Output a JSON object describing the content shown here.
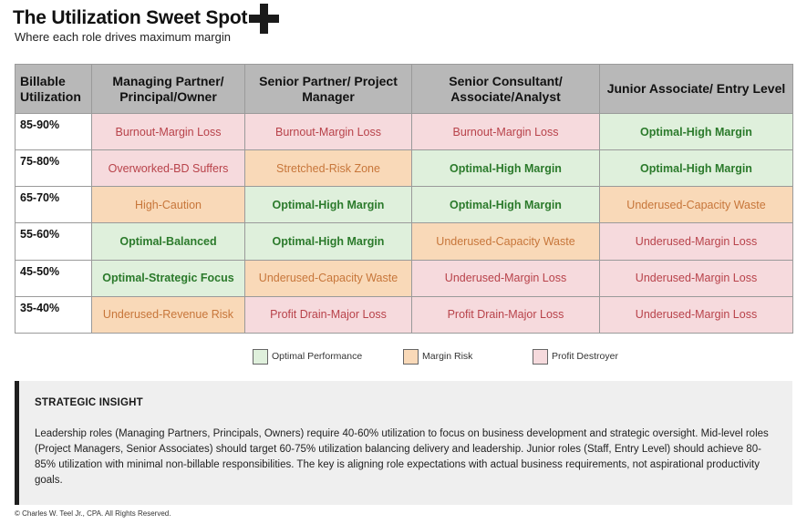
{
  "header": {
    "title": "The Utilization Sweet Spot",
    "subtitle": "Where each role drives maximum margin",
    "logo_icon": "plus-icon"
  },
  "table": {
    "corner_label": "Billable Utilization",
    "columns": [
      "Managing Partner/ Principal/Owner",
      "Senior Partner/ Project Manager",
      "Senior Consultant/ Associate/Analyst",
      "Junior Associate/ Entry Level"
    ],
    "rows": [
      {
        "label": "85-90%",
        "cells": [
          {
            "text": "Burnout-Margin Loss",
            "status": "profit-destroyer"
          },
          {
            "text": "Burnout-Margin Loss",
            "status": "profit-destroyer"
          },
          {
            "text": "Burnout-Margin Loss",
            "status": "profit-destroyer"
          },
          {
            "text": "Optimal-High Margin",
            "status": "optimal"
          }
        ]
      },
      {
        "label": "75-80%",
        "cells": [
          {
            "text": "Overworked-BD Suffers",
            "status": "profit-destroyer"
          },
          {
            "text": "Stretched-Risk Zone",
            "status": "margin-risk"
          },
          {
            "text": "Optimal-High Margin",
            "status": "optimal"
          },
          {
            "text": "Optimal-High Margin",
            "status": "optimal"
          }
        ]
      },
      {
        "label": "65-70%",
        "cells": [
          {
            "text": "High-Caution",
            "status": "margin-risk"
          },
          {
            "text": "Optimal-High Margin",
            "status": "optimal"
          },
          {
            "text": "Optimal-High Margin",
            "status": "optimal"
          },
          {
            "text": "Underused-Capacity Waste",
            "status": "margin-risk"
          }
        ]
      },
      {
        "label": "55-60%",
        "cells": [
          {
            "text": "Optimal-Balanced",
            "status": "optimal"
          },
          {
            "text": "Optimal-High Margin",
            "status": "optimal"
          },
          {
            "text": "Underused-Capacity Waste",
            "status": "margin-risk"
          },
          {
            "text": "Underused-Margin Loss",
            "status": "profit-destroyer"
          }
        ]
      },
      {
        "label": "45-50%",
        "cells": [
          {
            "text": "Optimal-Strategic Focus",
            "status": "optimal"
          },
          {
            "text": "Underused-Capacity Waste",
            "status": "margin-risk"
          },
          {
            "text": "Underused-Margin Loss",
            "status": "profit-destroyer"
          },
          {
            "text": "Underused-Margin Loss",
            "status": "profit-destroyer"
          }
        ]
      },
      {
        "label": "35-40%",
        "cells": [
          {
            "text": "Underused-Revenue Risk",
            "status": "margin-risk"
          },
          {
            "text": "Profit Drain-Major Loss",
            "status": "profit-destroyer"
          },
          {
            "text": "Profit Drain-Major Loss",
            "status": "profit-destroyer"
          },
          {
            "text": "Underused-Margin Loss",
            "status": "profit-destroyer"
          }
        ]
      }
    ]
  },
  "legend": [
    {
      "label": "Optimal Performance",
      "status": "optimal"
    },
    {
      "label": "Margin Risk",
      "status": "margin-risk"
    },
    {
      "label": "Profit Destroyer",
      "status": "profit-destroyer"
    }
  ],
  "colors": {
    "optimal_bg": "#dff0dc",
    "optimal_text": "#2b7a2b",
    "margin_risk_bg": "#f9d9b8",
    "margin_risk_text": "#c7763a",
    "profit_destroyer_bg": "#f6dadd",
    "profit_destroyer_text": "#b8424a",
    "header_bg": "#b8b8b8"
  },
  "insight": {
    "heading": "STRATEGIC INSIGHT",
    "body": "Leadership roles (Managing Partners, Principals, Owners) require 40-60% utilization to focus on business development and strategic oversight. Mid-level roles (Project Managers, Senior Associates) should target 60-75% utilization balancing delivery and leadership. Junior roles (Staff, Entry Level) should achieve 80-85% utilization with minimal non-billable responsibilities. The key is aligning role expectations with actual business requirements, not aspirational productivity goals."
  },
  "footer": {
    "copyright": "© Charles W. Teel Jr., CPA.  All Rights Reserved."
  }
}
